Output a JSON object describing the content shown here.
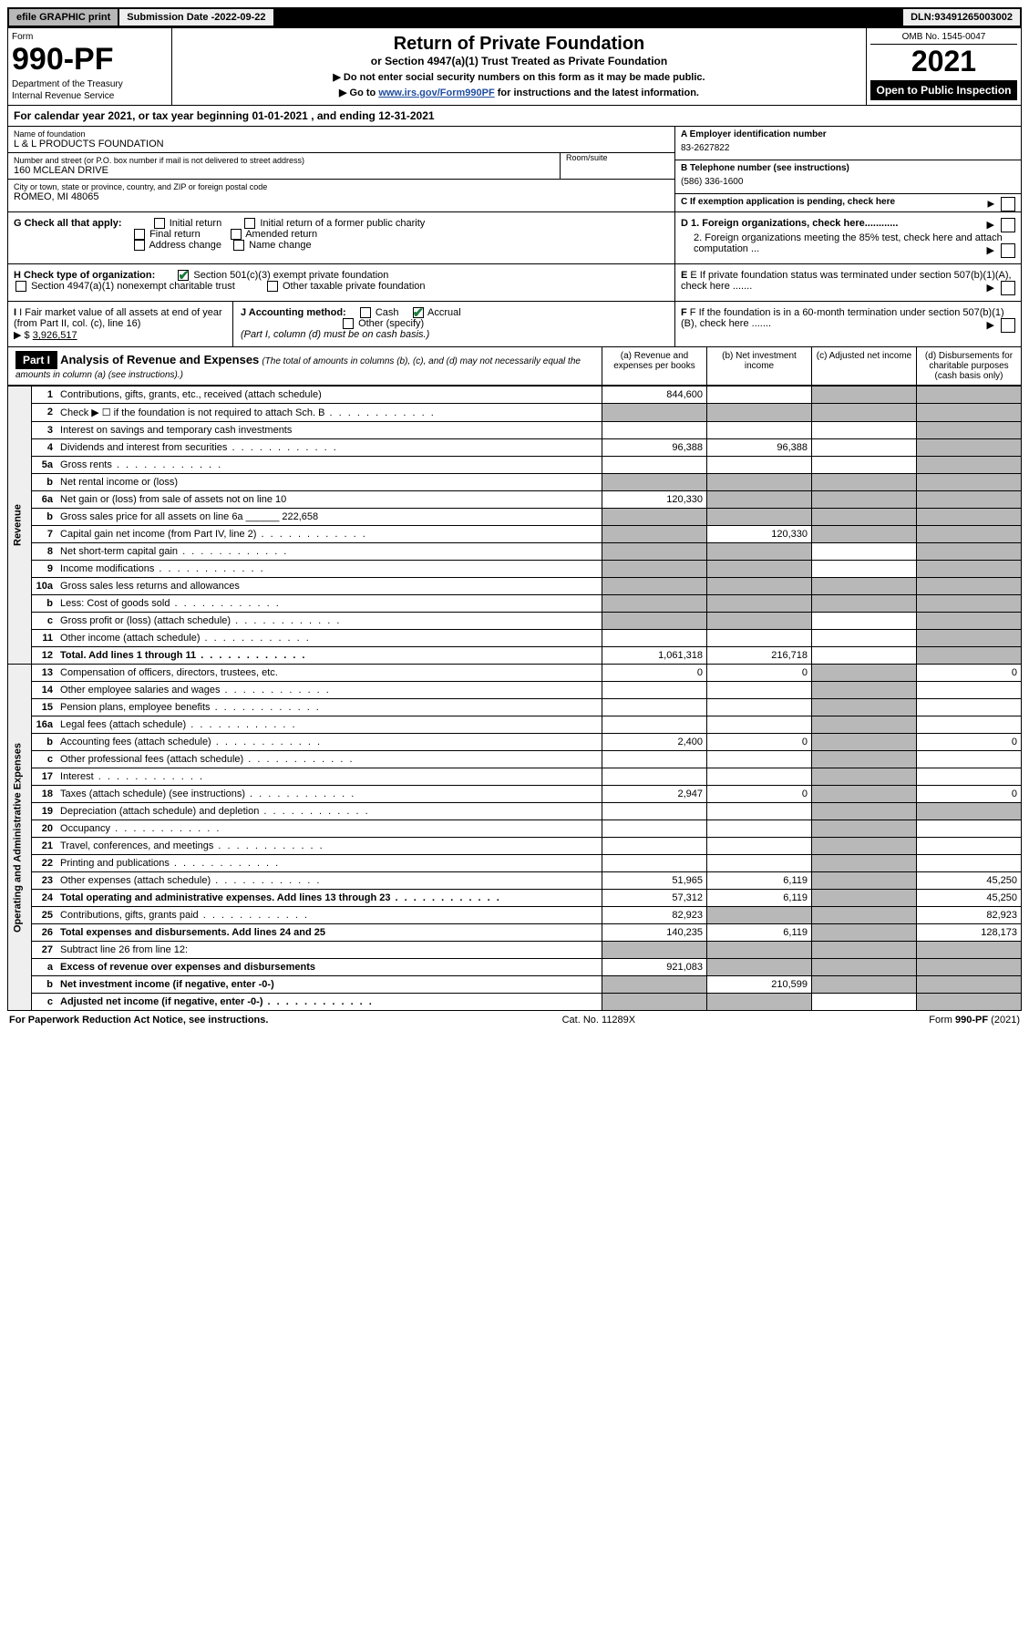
{
  "topbar": {
    "efile": "efile GRAPHIC print",
    "submission_label": "Submission Date - ",
    "submission_date": "2022-09-22",
    "dln_label": "DLN: ",
    "dln": "93491265003002"
  },
  "header": {
    "form_label": "Form",
    "form_number": "990-PF",
    "dept1": "Department of the Treasury",
    "dept2": "Internal Revenue Service",
    "title": "Return of Private Foundation",
    "subtitle": "or Section 4947(a)(1) Trust Treated as Private Foundation",
    "instr1": "▶ Do not enter social security numbers on this form as it may be made public.",
    "instr2_pre": "▶ Go to ",
    "instr2_link": "www.irs.gov/Form990PF",
    "instr2_post": " for instructions and the latest information.",
    "omb": "OMB No. 1545-0047",
    "year": "2021",
    "open": "Open to Public Inspection"
  },
  "calyear": {
    "text_pre": "For calendar year 2021, or tax year beginning ",
    "begin": "01-01-2021",
    "text_mid": " , and ending ",
    "end": "12-31-2021"
  },
  "entity": {
    "name_label": "Name of foundation",
    "name": "L & L PRODUCTS FOUNDATION",
    "addr_label": "Number and street (or P.O. box number if mail is not delivered to street address)",
    "addr": "160 MCLEAN DRIVE",
    "room_label": "Room/suite",
    "city_label": "City or town, state or province, country, and ZIP or foreign postal code",
    "city": "ROMEO, MI  48065",
    "ein_label": "A Employer identification number",
    "ein": "83-2627822",
    "phone_label": "B Telephone number (see instructions)",
    "phone": "(586) 336-1600",
    "pending_label": "C If exemption application is pending, check here"
  },
  "checks": {
    "g_label": "G Check all that apply:",
    "g_opts": [
      "Initial return",
      "Initial return of a former public charity",
      "Final return",
      "Amended return",
      "Address change",
      "Name change"
    ],
    "h_label": "H Check type of organization:",
    "h_501c3": "Section 501(c)(3) exempt private foundation",
    "h_4947": "Section 4947(a)(1) nonexempt charitable trust",
    "h_other": "Other taxable private foundation",
    "i_label": "I Fair market value of all assets at end of year (from Part II, col. (c), line 16)",
    "i_val": "3,926,517",
    "j_label": "J Accounting method:",
    "j_cash": "Cash",
    "j_accrual": "Accrual",
    "j_other": "Other (specify)",
    "j_note": "(Part I, column (d) must be on cash basis.)",
    "d1": "D 1. Foreign organizations, check here............",
    "d2": "2. Foreign organizations meeting the 85% test, check here and attach computation ...",
    "e": "E If private foundation status was terminated under section 507(b)(1)(A), check here .......",
    "f": "F If the foundation is in a 60-month termination under section 507(b)(1)(B), check here ......."
  },
  "part1": {
    "hdr": "Part I",
    "title": "Analysis of Revenue and Expenses",
    "note": "(The total of amounts in columns (b), (c), and (d) may not necessarily equal the amounts in column (a) (see instructions).)",
    "cols": {
      "a": "(a) Revenue and expenses per books",
      "b": "(b) Net investment income",
      "c": "(c) Adjusted net income",
      "d": "(d) Disbursements for charitable purposes (cash basis only)"
    }
  },
  "side_labels": {
    "revenue": "Revenue",
    "expenses": "Operating and Administrative Expenses"
  },
  "rows": [
    {
      "ln": "1",
      "desc": "Contributions, gifts, grants, etc., received (attach schedule)",
      "a": "844,600",
      "b": "",
      "c": "shade",
      "d": "shade"
    },
    {
      "ln": "2",
      "desc": "Check ▶ ☐ if the foundation is not required to attach Sch. B",
      "a": "shade",
      "b": "shade",
      "c": "shade",
      "d": "shade",
      "dots": true
    },
    {
      "ln": "3",
      "desc": "Interest on savings and temporary cash investments",
      "a": "",
      "b": "",
      "c": "",
      "d": "shade"
    },
    {
      "ln": "4",
      "desc": "Dividends and interest from securities",
      "a": "96,388",
      "b": "96,388",
      "c": "",
      "d": "shade",
      "dots": true
    },
    {
      "ln": "5a",
      "desc": "Gross rents",
      "a": "",
      "b": "",
      "c": "",
      "d": "shade",
      "dots": true
    },
    {
      "ln": "b",
      "desc": "Net rental income or (loss)",
      "a": "shade",
      "b": "shade",
      "c": "shade",
      "d": "shade",
      "inline": true
    },
    {
      "ln": "6a",
      "desc": "Net gain or (loss) from sale of assets not on line 10",
      "a": "120,330",
      "b": "shade",
      "c": "shade",
      "d": "shade"
    },
    {
      "ln": "b",
      "desc": "Gross sales price for all assets on line 6a",
      "a": "shade",
      "b": "shade",
      "c": "shade",
      "d": "shade",
      "inline": true,
      "inline_val": "222,658"
    },
    {
      "ln": "7",
      "desc": "Capital gain net income (from Part IV, line 2)",
      "a": "shade",
      "b": "120,330",
      "c": "shade",
      "d": "shade",
      "dots": true
    },
    {
      "ln": "8",
      "desc": "Net short-term capital gain",
      "a": "shade",
      "b": "shade",
      "c": "",
      "d": "shade",
      "dots": true
    },
    {
      "ln": "9",
      "desc": "Income modifications",
      "a": "shade",
      "b": "shade",
      "c": "",
      "d": "shade",
      "dots": true
    },
    {
      "ln": "10a",
      "desc": "Gross sales less returns and allowances",
      "a": "shade",
      "b": "shade",
      "c": "shade",
      "d": "shade",
      "inline": true
    },
    {
      "ln": "b",
      "desc": "Less: Cost of goods sold",
      "a": "shade",
      "b": "shade",
      "c": "shade",
      "d": "shade",
      "inline": true,
      "dots": true
    },
    {
      "ln": "c",
      "desc": "Gross profit or (loss) (attach schedule)",
      "a": "shade",
      "b": "shade",
      "c": "",
      "d": "shade",
      "dots": true
    },
    {
      "ln": "11",
      "desc": "Other income (attach schedule)",
      "a": "",
      "b": "",
      "c": "",
      "d": "shade",
      "dots": true
    },
    {
      "ln": "12",
      "desc": "Total. Add lines 1 through 11",
      "a": "1,061,318",
      "b": "216,718",
      "c": "",
      "d": "shade",
      "bold": true,
      "dots": true
    },
    {
      "ln": "13",
      "desc": "Compensation of officers, directors, trustees, etc.",
      "a": "0",
      "b": "0",
      "c": "shade",
      "d": "0"
    },
    {
      "ln": "14",
      "desc": "Other employee salaries and wages",
      "a": "",
      "b": "",
      "c": "shade",
      "d": "",
      "dots": true
    },
    {
      "ln": "15",
      "desc": "Pension plans, employee benefits",
      "a": "",
      "b": "",
      "c": "shade",
      "d": "",
      "dots": true
    },
    {
      "ln": "16a",
      "desc": "Legal fees (attach schedule)",
      "a": "",
      "b": "",
      "c": "shade",
      "d": "",
      "dots": true
    },
    {
      "ln": "b",
      "desc": "Accounting fees (attach schedule)",
      "a": "2,400",
      "b": "0",
      "c": "shade",
      "d": "0",
      "dots": true
    },
    {
      "ln": "c",
      "desc": "Other professional fees (attach schedule)",
      "a": "",
      "b": "",
      "c": "shade",
      "d": "",
      "dots": true
    },
    {
      "ln": "17",
      "desc": "Interest",
      "a": "",
      "b": "",
      "c": "shade",
      "d": "",
      "dots": true
    },
    {
      "ln": "18",
      "desc": "Taxes (attach schedule) (see instructions)",
      "a": "2,947",
      "b": "0",
      "c": "shade",
      "d": "0",
      "dots": true
    },
    {
      "ln": "19",
      "desc": "Depreciation (attach schedule) and depletion",
      "a": "",
      "b": "",
      "c": "shade",
      "d": "shade",
      "dots": true
    },
    {
      "ln": "20",
      "desc": "Occupancy",
      "a": "",
      "b": "",
      "c": "shade",
      "d": "",
      "dots": true
    },
    {
      "ln": "21",
      "desc": "Travel, conferences, and meetings",
      "a": "",
      "b": "",
      "c": "shade",
      "d": "",
      "dots": true
    },
    {
      "ln": "22",
      "desc": "Printing and publications",
      "a": "",
      "b": "",
      "c": "shade",
      "d": "",
      "dots": true
    },
    {
      "ln": "23",
      "desc": "Other expenses (attach schedule)",
      "a": "51,965",
      "b": "6,119",
      "c": "shade",
      "d": "45,250",
      "dots": true
    },
    {
      "ln": "24",
      "desc": "Total operating and administrative expenses. Add lines 13 through 23",
      "a": "57,312",
      "b": "6,119",
      "c": "shade",
      "d": "45,250",
      "bold": true,
      "dots": true
    },
    {
      "ln": "25",
      "desc": "Contributions, gifts, grants paid",
      "a": "82,923",
      "b": "shade",
      "c": "shade",
      "d": "82,923",
      "dots": true
    },
    {
      "ln": "26",
      "desc": "Total expenses and disbursements. Add lines 24 and 25",
      "a": "140,235",
      "b": "6,119",
      "c": "shade",
      "d": "128,173",
      "bold": true
    },
    {
      "ln": "27",
      "desc": "Subtract line 26 from line 12:",
      "a": "shade",
      "b": "shade",
      "c": "shade",
      "d": "shade"
    },
    {
      "ln": "a",
      "desc": "Excess of revenue over expenses and disbursements",
      "a": "921,083",
      "b": "shade",
      "c": "shade",
      "d": "shade",
      "bold": true
    },
    {
      "ln": "b",
      "desc": "Net investment income (if negative, enter -0-)",
      "a": "shade",
      "b": "210,599",
      "c": "shade",
      "d": "shade",
      "bold": true
    },
    {
      "ln": "c",
      "desc": "Adjusted net income (if negative, enter -0-)",
      "a": "shade",
      "b": "shade",
      "c": "",
      "d": "shade",
      "bold": true,
      "dots": true
    }
  ],
  "footer": {
    "left": "For Paperwork Reduction Act Notice, see instructions.",
    "mid": "Cat. No. 11289X",
    "right": "Form 990-PF (2021)"
  }
}
